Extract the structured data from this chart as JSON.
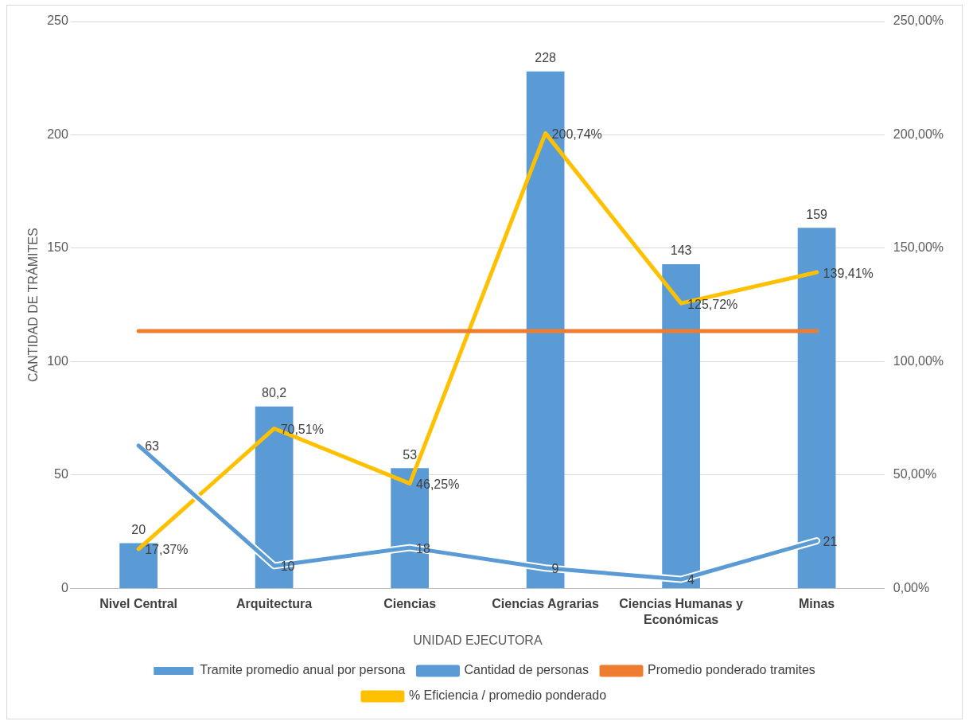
{
  "chart_data": {
    "type": "bar",
    "xlabel": "UNIDAD EJECUTORA",
    "ylabel": "CANTIDAD DE TRÁMITES",
    "categories": [
      "Nivel Central",
      "Arquitectura",
      "Ciencias",
      "Ciencias Agrarias",
      "Ciencias Humanas y Económicas",
      "Minas"
    ],
    "series": [
      {
        "name": "Tramite promedio anual por persona",
        "color": "#5b9bd5",
        "values": [
          20,
          80.2,
          53,
          228,
          143,
          159
        ],
        "value_labels": [
          "20",
          "80,2",
          "53",
          "228",
          "143",
          "159"
        ]
      },
      {
        "name": "Cantidad de personas",
        "type": "line",
        "color": "#5b9bd5",
        "values": [
          63,
          10,
          18,
          9,
          4,
          21
        ],
        "value_labels": [
          "63",
          "10",
          "18",
          "9",
          "4",
          "21"
        ]
      },
      {
        "name": "Promedio ponderado tramites",
        "type": "line",
        "color": "#ed7d31",
        "values": [
          113.5,
          113.5,
          113.5,
          113.5,
          113.5,
          113.5
        ]
      },
      {
        "name": "% Eficiencia / promedio ponderado",
        "type": "line",
        "axis": "y2",
        "color": "#ffc000",
        "values": [
          17.37,
          70.51,
          46.25,
          200.74,
          125.72,
          139.41
        ],
        "value_labels": [
          "17,37%",
          "70,51%",
          "46,25%",
          "200,74%",
          "125,72%",
          "139,41%"
        ]
      }
    ],
    "ylim": [
      0,
      250
    ],
    "yticks": [
      0,
      50,
      100,
      150,
      200,
      250
    ],
    "y2lim": [
      0,
      250
    ],
    "y2ticks": [
      {
        "value": 0,
        "label": "0,00%"
      },
      {
        "value": 50,
        "label": "50,00%"
      },
      {
        "value": 100,
        "label": "100,00%"
      },
      {
        "value": 150,
        "label": "150,00%"
      },
      {
        "value": 200,
        "label": "200,00%"
      },
      {
        "value": 250,
        "label": "250,00%"
      }
    ],
    "grid": "y",
    "legend": "bottom",
    "marker": "none"
  }
}
